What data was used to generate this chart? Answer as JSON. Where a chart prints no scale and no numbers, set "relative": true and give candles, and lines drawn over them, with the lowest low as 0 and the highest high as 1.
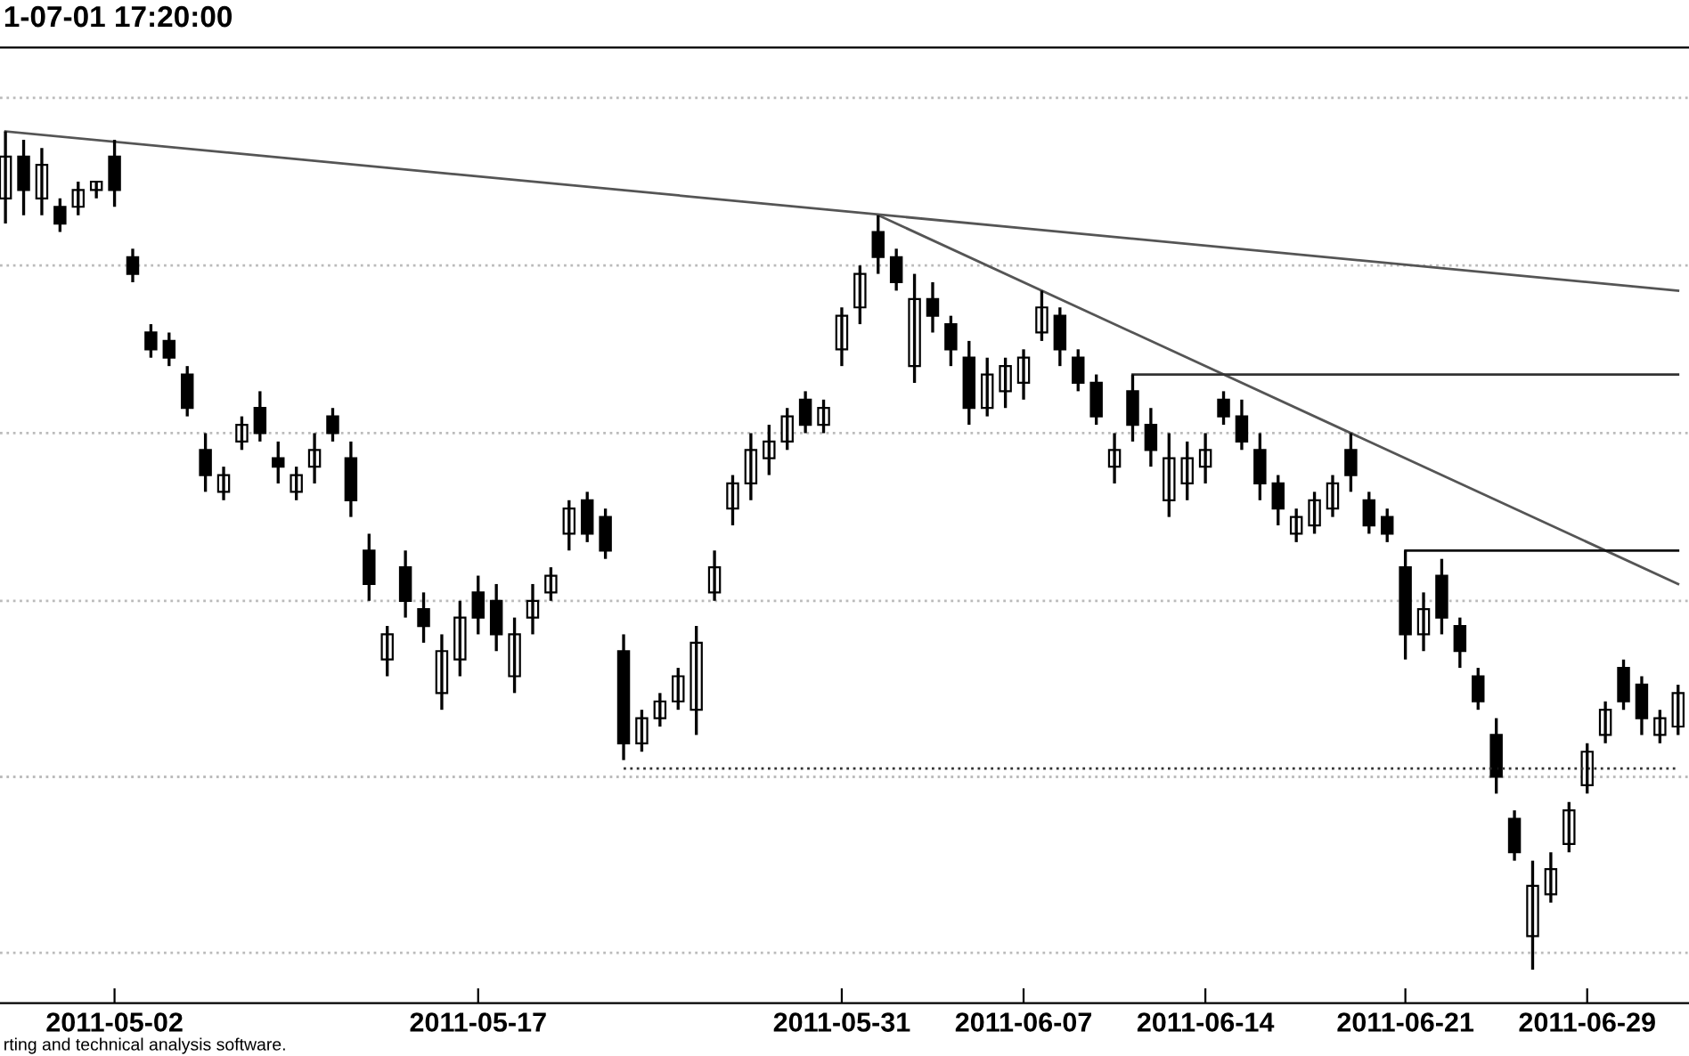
{
  "chart_data": {
    "type": "candlestick",
    "title": "1-07-01 17:20:00",
    "relative": true,
    "color": "#000000",
    "annotations": [
      "rting and technical analysis software."
    ],
    "categories": [
      null,
      null,
      null,
      null,
      null,
      null,
      "2011-05-02",
      null,
      null,
      null,
      null,
      null,
      null,
      null,
      null,
      null,
      null,
      null,
      null,
      null,
      null,
      null,
      null,
      null,
      null,
      null,
      "2011-05-17",
      null,
      null,
      null,
      null,
      null,
      null,
      null,
      null,
      null,
      null,
      null,
      null,
      null,
      null,
      null,
      null,
      null,
      null,
      null,
      "2011-05-31",
      null,
      null,
      null,
      null,
      null,
      null,
      null,
      null,
      null,
      "2011-06-07",
      null,
      null,
      null,
      null,
      null,
      null,
      null,
      null,
      null,
      "2011-06-14",
      null,
      null,
      null,
      null,
      null,
      null,
      null,
      null,
      null,
      null,
      "2011-06-21",
      null,
      null,
      null,
      null,
      null,
      null,
      null,
      null,
      null,
      "2011-06-29",
      null,
      null,
      null,
      null,
      null
    ],
    "ohlc": [
      [
        0.92,
        1.0,
        0.89,
        0.97
      ],
      [
        0.97,
        0.99,
        0.9,
        0.93
      ],
      [
        0.92,
        0.98,
        0.9,
        0.96
      ],
      [
        0.91,
        0.92,
        0.88,
        0.89
      ],
      [
        0.91,
        0.94,
        0.9,
        0.93
      ],
      [
        0.93,
        0.94,
        0.92,
        0.94
      ],
      [
        0.97,
        0.99,
        0.91,
        0.93
      ],
      [
        0.85,
        0.86,
        0.82,
        0.83
      ],
      [
        0.76,
        0.77,
        0.73,
        0.74
      ],
      [
        0.75,
        0.76,
        0.72,
        0.73
      ],
      [
        0.71,
        0.72,
        0.66,
        0.67
      ],
      [
        0.62,
        0.64,
        0.57,
        0.59
      ],
      [
        0.57,
        0.6,
        0.56,
        0.59
      ],
      [
        0.63,
        0.66,
        0.62,
        0.65
      ],
      [
        0.67,
        0.69,
        0.63,
        0.64
      ],
      [
        0.61,
        0.63,
        0.58,
        0.6
      ],
      [
        0.57,
        0.6,
        0.56,
        0.59
      ],
      [
        0.6,
        0.64,
        0.58,
        0.62
      ],
      [
        0.66,
        0.67,
        0.63,
        0.64
      ],
      [
        0.61,
        0.63,
        0.54,
        0.56
      ],
      [
        0.5,
        0.52,
        0.44,
        0.46
      ],
      [
        0.37,
        0.41,
        0.35,
        0.4
      ],
      [
        0.48,
        0.5,
        0.42,
        0.44
      ],
      [
        0.43,
        0.45,
        0.39,
        0.41
      ],
      [
        0.33,
        0.4,
        0.31,
        0.38
      ],
      [
        0.37,
        0.44,
        0.35,
        0.42
      ],
      [
        0.45,
        0.47,
        0.4,
        0.42
      ],
      [
        0.44,
        0.46,
        0.38,
        0.4
      ],
      [
        0.35,
        0.42,
        0.33,
        0.4
      ],
      [
        0.42,
        0.46,
        0.4,
        0.44
      ],
      [
        0.45,
        0.48,
        0.44,
        0.47
      ],
      [
        0.52,
        0.56,
        0.5,
        0.55
      ],
      [
        0.56,
        0.57,
        0.51,
        0.52
      ],
      [
        0.54,
        0.55,
        0.49,
        0.5
      ],
      [
        0.38,
        0.4,
        0.25,
        0.27
      ],
      [
        0.27,
        0.31,
        0.26,
        0.3
      ],
      [
        0.3,
        0.33,
        0.29,
        0.32
      ],
      [
        0.32,
        0.36,
        0.31,
        0.35
      ],
      [
        0.31,
        0.41,
        0.28,
        0.39
      ],
      [
        0.45,
        0.5,
        0.44,
        0.48
      ],
      [
        0.55,
        0.59,
        0.53,
        0.58
      ],
      [
        0.58,
        0.64,
        0.56,
        0.62
      ],
      [
        0.61,
        0.65,
        0.59,
        0.63
      ],
      [
        0.63,
        0.67,
        0.62,
        0.66
      ],
      [
        0.68,
        0.69,
        0.64,
        0.65
      ],
      [
        0.65,
        0.68,
        0.64,
        0.67
      ],
      [
        0.74,
        0.79,
        0.72,
        0.78
      ],
      [
        0.79,
        0.84,
        0.77,
        0.83
      ],
      [
        0.88,
        0.9,
        0.83,
        0.85
      ],
      [
        0.85,
        0.86,
        0.81,
        0.82
      ],
      [
        0.72,
        0.83,
        0.7,
        0.8
      ],
      [
        0.8,
        0.82,
        0.76,
        0.78
      ],
      [
        0.77,
        0.78,
        0.72,
        0.74
      ],
      [
        0.73,
        0.75,
        0.65,
        0.67
      ],
      [
        0.67,
        0.73,
        0.66,
        0.71
      ],
      [
        0.69,
        0.73,
        0.67,
        0.72
      ],
      [
        0.7,
        0.74,
        0.68,
        0.73
      ],
      [
        0.76,
        0.81,
        0.75,
        0.79
      ],
      [
        0.78,
        0.79,
        0.72,
        0.74
      ],
      [
        0.73,
        0.74,
        0.69,
        0.7
      ],
      [
        0.7,
        0.71,
        0.65,
        0.66
      ],
      [
        0.6,
        0.64,
        0.58,
        0.62
      ],
      [
        0.69,
        0.71,
        0.63,
        0.65
      ],
      [
        0.65,
        0.67,
        0.6,
        0.62
      ],
      [
        0.56,
        0.64,
        0.54,
        0.61
      ],
      [
        0.58,
        0.63,
        0.56,
        0.61
      ],
      [
        0.6,
        0.64,
        0.58,
        0.62
      ],
      [
        0.68,
        0.69,
        0.65,
        0.66
      ],
      [
        0.66,
        0.68,
        0.62,
        0.63
      ],
      [
        0.62,
        0.64,
        0.56,
        0.58
      ],
      [
        0.58,
        0.59,
        0.53,
        0.55
      ],
      [
        0.52,
        0.55,
        0.51,
        0.54
      ],
      [
        0.53,
        0.57,
        0.52,
        0.56
      ],
      [
        0.55,
        0.59,
        0.54,
        0.58
      ],
      [
        0.62,
        0.64,
        0.57,
        0.59
      ],
      [
        0.56,
        0.57,
        0.52,
        0.53
      ],
      [
        0.54,
        0.55,
        0.51,
        0.52
      ],
      [
        0.48,
        0.5,
        0.37,
        0.4
      ],
      [
        0.4,
        0.45,
        0.38,
        0.43
      ],
      [
        0.47,
        0.49,
        0.4,
        0.42
      ],
      [
        0.41,
        0.42,
        0.36,
        0.38
      ],
      [
        0.35,
        0.36,
        0.31,
        0.32
      ],
      [
        0.28,
        0.3,
        0.21,
        0.23
      ],
      [
        0.18,
        0.19,
        0.13,
        0.14
      ],
      [
        0.04,
        0.13,
        0.0,
        0.1
      ],
      [
        0.09,
        0.14,
        0.08,
        0.12
      ],
      [
        0.15,
        0.2,
        0.14,
        0.19
      ],
      [
        0.22,
        0.27,
        0.21,
        0.26
      ],
      [
        0.28,
        0.32,
        0.27,
        0.31
      ],
      [
        0.36,
        0.37,
        0.31,
        0.32
      ],
      [
        0.34,
        0.35,
        0.28,
        0.3
      ],
      [
        0.28,
        0.31,
        0.27,
        0.3
      ],
      [
        0.29,
        0.34,
        0.28,
        0.33
      ]
    ],
    "series": [
      {
        "type": "line",
        "color": "#555555",
        "values": [
          1.0,
          null,
          null,
          null,
          null,
          null,
          null,
          null,
          null,
          null,
          null,
          null,
          null,
          null,
          null,
          null,
          null,
          null,
          null,
          null,
          null,
          null,
          null,
          null,
          null,
          null,
          null,
          null,
          null,
          null,
          null,
          null,
          null,
          null,
          null,
          null,
          null,
          null,
          null,
          null,
          null,
          null,
          null,
          null,
          null,
          null,
          null,
          null,
          null,
          null,
          null,
          null,
          null,
          null,
          null,
          null,
          null,
          null,
          null,
          null,
          null,
          null,
          null,
          null,
          null,
          null,
          null,
          null,
          null,
          null,
          null,
          null,
          null,
          null,
          null,
          null,
          null,
          null,
          null,
          null,
          null,
          null,
          null,
          null,
          null,
          null,
          null,
          null,
          null,
          null,
          null,
          null,
          0.81
        ]
      },
      {
        "type": "line",
        "color": "#555555",
        "values": [
          null,
          null,
          null,
          null,
          null,
          null,
          null,
          null,
          null,
          null,
          null,
          null,
          null,
          null,
          null,
          null,
          null,
          null,
          null,
          null,
          null,
          null,
          null,
          null,
          null,
          null,
          null,
          null,
          null,
          null,
          null,
          null,
          null,
          null,
          null,
          null,
          null,
          null,
          null,
          null,
          null,
          null,
          null,
          null,
          null,
          null,
          null,
          null,
          0.9,
          null,
          null,
          null,
          null,
          null,
          null,
          null,
          null,
          null,
          null,
          null,
          null,
          null,
          null,
          null,
          null,
          null,
          null,
          null,
          null,
          null,
          null,
          null,
          null,
          null,
          null,
          null,
          null,
          null,
          null,
          null,
          null,
          null,
          null,
          null,
          null,
          null,
          null,
          null,
          null,
          null,
          null,
          null,
          0.46
        ]
      },
      {
        "type": "line",
        "color": "#333333",
        "values": [
          null,
          null,
          null,
          null,
          null,
          null,
          null,
          null,
          null,
          null,
          null,
          null,
          null,
          null,
          null,
          null,
          null,
          null,
          null,
          null,
          null,
          null,
          null,
          null,
          null,
          null,
          null,
          null,
          null,
          null,
          null,
          null,
          null,
          null,
          null,
          null,
          null,
          null,
          null,
          null,
          null,
          null,
          null,
          null,
          null,
          null,
          null,
          null,
          null,
          null,
          null,
          null,
          null,
          null,
          null,
          null,
          null,
          null,
          null,
          null,
          null,
          null,
          0.71,
          null,
          null,
          null,
          null,
          null,
          null,
          null,
          null,
          null,
          null,
          null,
          null,
          null,
          null,
          null,
          null,
          null,
          null,
          null,
          null,
          null,
          null,
          null,
          null,
          null,
          null,
          null,
          null,
          null,
          0.71
        ]
      },
      {
        "type": "line",
        "color": "#111111",
        "values": [
          null,
          null,
          null,
          null,
          null,
          null,
          null,
          null,
          null,
          null,
          null,
          null,
          null,
          null,
          null,
          null,
          null,
          null,
          null,
          null,
          null,
          null,
          null,
          null,
          null,
          null,
          null,
          null,
          null,
          null,
          null,
          null,
          null,
          null,
          null,
          null,
          null,
          null,
          null,
          null,
          null,
          null,
          null,
          null,
          null,
          null,
          null,
          null,
          null,
          null,
          null,
          null,
          null,
          null,
          null,
          null,
          null,
          null,
          null,
          null,
          null,
          null,
          null,
          null,
          null,
          null,
          null,
          null,
          null,
          null,
          null,
          null,
          null,
          null,
          null,
          null,
          null,
          0.5,
          null,
          null,
          null,
          null,
          null,
          null,
          null,
          null,
          null,
          null,
          null,
          null,
          null,
          null,
          0.5
        ]
      },
      {
        "type": "line",
        "color": "#333333",
        "line_style": "dotted",
        "values": [
          null,
          null,
          null,
          null,
          null,
          null,
          null,
          null,
          null,
          null,
          null,
          null,
          null,
          null,
          null,
          null,
          null,
          null,
          null,
          null,
          null,
          null,
          null,
          null,
          null,
          null,
          null,
          null,
          null,
          null,
          null,
          null,
          null,
          null,
          0.24,
          null,
          null,
          null,
          null,
          null,
          null,
          null,
          null,
          null,
          null,
          null,
          null,
          null,
          null,
          null,
          null,
          null,
          null,
          null,
          null,
          null,
          null,
          null,
          null,
          null,
          null,
          null,
          null,
          null,
          null,
          null,
          null,
          null,
          null,
          null,
          null,
          null,
          null,
          null,
          null,
          null,
          null,
          null,
          null,
          null,
          null,
          null,
          null,
          null,
          null,
          null,
          null,
          null,
          null,
          null,
          null,
          null,
          0.24
        ]
      }
    ],
    "ref_lines": [
      {
        "axis": "y",
        "value": 1.04,
        "color": "#bbbbbb",
        "line_style": "dotted"
      },
      {
        "axis": "y",
        "value": 0.84,
        "color": "#bbbbbb",
        "line_style": "dotted"
      },
      {
        "axis": "y",
        "value": 0.64,
        "color": "#bbbbbb",
        "line_style": "dotted"
      },
      {
        "axis": "y",
        "value": 0.44,
        "color": "#bbbbbb",
        "line_style": "dotted"
      },
      {
        "axis": "y",
        "value": 0.23,
        "color": "#bbbbbb",
        "line_style": "dotted"
      },
      {
        "axis": "y",
        "value": 0.02,
        "color": "#bbbbbb",
        "line_style": "dotted"
      }
    ]
  }
}
